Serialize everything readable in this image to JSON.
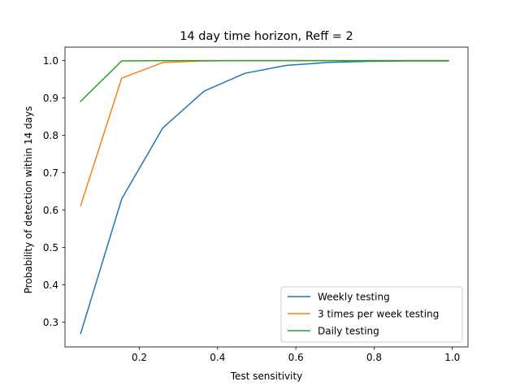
{
  "chart_data": {
    "type": "line",
    "title": "14 day time horizon, Reff = 2",
    "xlabel": "Test sensitivity",
    "ylabel": "Probability of detection within 14 days",
    "xlim": [
      0.01,
      1.04
    ],
    "ylim": [
      0.234,
      1.036
    ],
    "xticks": [
      0.2,
      0.4,
      0.6,
      0.8,
      1.0
    ],
    "xtick_labels": [
      "0.2",
      "0.4",
      "0.6",
      "0.8",
      "1.0"
    ],
    "yticks": [
      0.3,
      0.4,
      0.5,
      0.6,
      0.7,
      0.8,
      0.9,
      1.0
    ],
    "ytick_labels": [
      "0.3",
      "0.4",
      "0.5",
      "0.6",
      "0.7",
      "0.8",
      "0.9",
      "1.0"
    ],
    "grid": false,
    "legend_position": "lower-right",
    "x": [
      0.05,
      0.155,
      0.26,
      0.365,
      0.47,
      0.575,
      0.68,
      0.785,
      0.89,
      0.99
    ],
    "series": [
      {
        "name": "Weekly testing",
        "color": "#1f77b4",
        "values": [
          0.27,
          0.63,
          0.82,
          0.918,
          0.966,
          0.987,
          0.995,
          0.998,
          0.999,
          0.999
        ]
      },
      {
        "name": "3 times per week testing",
        "color": "#ff7f0e",
        "values": [
          0.612,
          0.953,
          0.995,
          0.999,
          1.0,
          1.0,
          1.0,
          1.0,
          1.0,
          1.0
        ]
      },
      {
        "name": "Daily testing",
        "color": "#2ca02c",
        "values": [
          0.891,
          0.999,
          1.0,
          1.0,
          1.0,
          1.0,
          1.0,
          1.0,
          1.0,
          1.0
        ]
      }
    ]
  }
}
